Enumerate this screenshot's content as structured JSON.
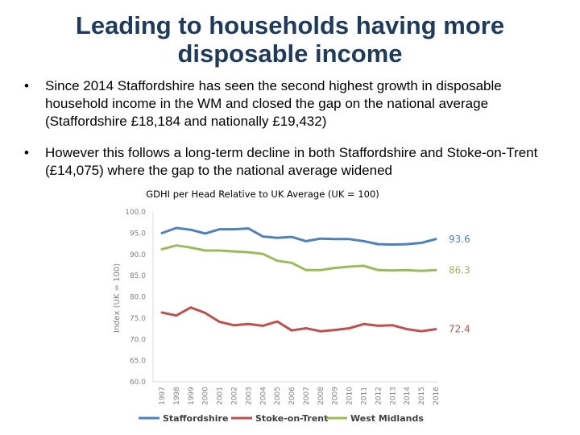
{
  "slide": {
    "title_line1": "Leading to households having more",
    "title_line2": "disposable income",
    "bullets": [
      "Since 2014 Staffordshire has seen the second highest growth in disposable household income in the WM and closed the gap on the national average (Staffordshire £18,184 and nationally £19,432)",
      "However this follows a long-term decline in both Staffordshire and Stoke-on-Trent (£14,075) where the gap to the national average widened"
    ],
    "bullet_glyph": "•"
  },
  "chart_data": {
    "type": "line",
    "title": "GDHI per Head Relative to UK Average (UK = 100)",
    "ylabel": "Index (UK = 100)",
    "xlabel": "",
    "ylim": [
      60,
      100
    ],
    "yticks": [
      "60.0",
      "65.0",
      "70.0",
      "75.0",
      "80.0",
      "85.0",
      "90.0",
      "95.0",
      "100.0"
    ],
    "ytick_values": [
      60,
      65,
      70,
      75,
      80,
      85,
      90,
      95,
      100
    ],
    "categories": [
      "1997",
      "1998",
      "1999",
      "2000",
      "2001",
      "2002",
      "2003",
      "2004",
      "2005",
      "2006",
      "2007",
      "2008",
      "2009",
      "2010",
      "2011",
      "2012",
      "2013",
      "2014",
      "2015",
      "2016"
    ],
    "grid": false,
    "legend_position": "bottom",
    "series": [
      {
        "name": "Staffordshire",
        "color": "#4f81bd",
        "end_label": "93.6",
        "values": [
          95.0,
          96.2,
          95.8,
          94.9,
          95.9,
          95.9,
          96.1,
          94.2,
          93.9,
          94.1,
          93.1,
          93.7,
          93.6,
          93.6,
          93.1,
          92.4,
          92.3,
          92.4,
          92.7,
          93.6
        ]
      },
      {
        "name": "Stoke-on-Trent",
        "color": "#c0504d",
        "end_label": "72.4",
        "values": [
          76.3,
          75.6,
          77.5,
          76.2,
          74.1,
          73.3,
          73.6,
          73.2,
          74.2,
          72.1,
          72.6,
          71.9,
          72.2,
          72.6,
          73.6,
          73.2,
          73.3,
          72.4,
          71.9,
          72.4
        ]
      },
      {
        "name": "West Midlands",
        "color": "#9bbb59",
        "end_label": "86.3",
        "values": [
          91.2,
          92.1,
          91.6,
          90.9,
          90.9,
          90.7,
          90.5,
          90.1,
          88.5,
          88.0,
          86.3,
          86.3,
          86.8,
          87.1,
          87.3,
          86.3,
          86.2,
          86.3,
          86.1,
          86.3
        ]
      }
    ]
  }
}
